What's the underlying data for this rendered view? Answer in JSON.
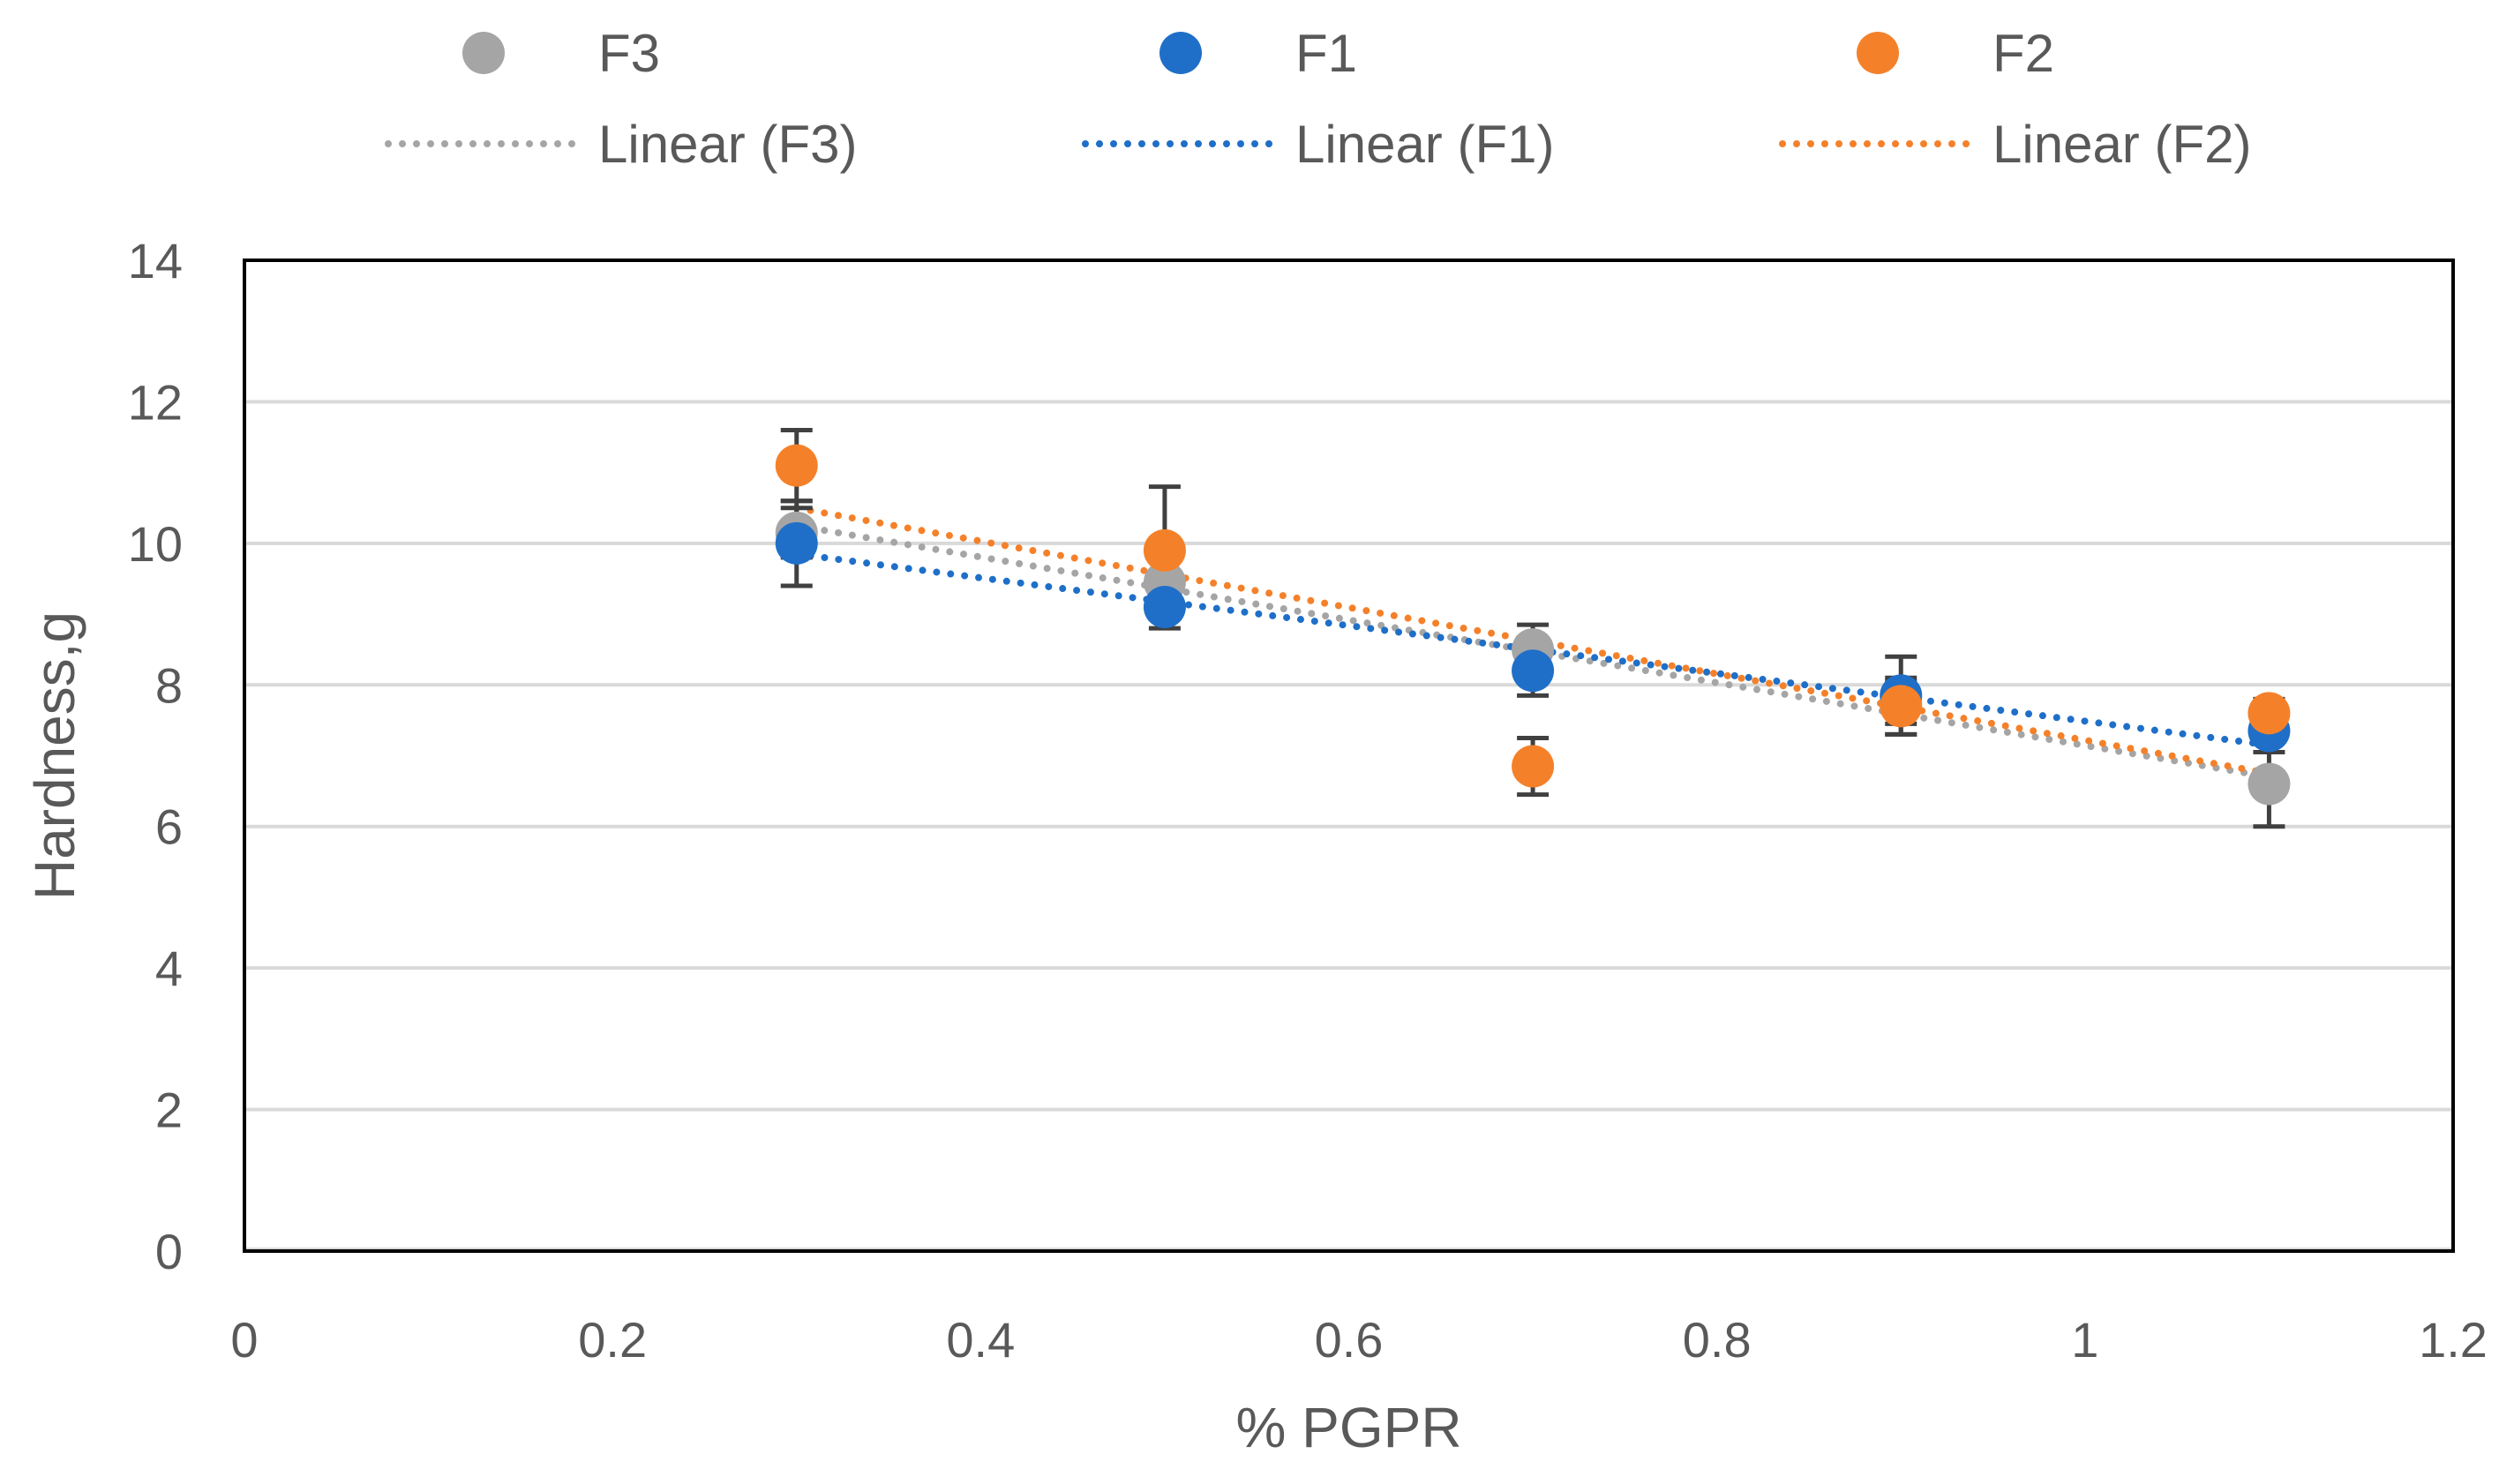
{
  "chart_data": {
    "type": "scatter",
    "title": "",
    "xlabel": "% PGPR",
    "ylabel": "Hardness,g",
    "xlim": [
      0,
      1.2
    ],
    "ylim": [
      0,
      14
    ],
    "x_ticks": [
      0,
      0.2,
      0.4,
      0.6,
      0.8,
      1,
      1.2
    ],
    "x_tick_labels": [
      "0",
      "0.2",
      "0.4",
      "0.6",
      "0.8",
      "1",
      "1.2"
    ],
    "y_ticks": [
      0,
      2,
      4,
      6,
      8,
      10,
      12,
      14
    ],
    "y_tick_labels": [
      "0",
      "2",
      "4",
      "6",
      "8",
      "10",
      "12",
      "14"
    ],
    "grid": "horizontal",
    "legend_position": "top",
    "series": [
      {
        "name": "F3",
        "trend_name": "Linear (F3)",
        "color": "#A5A5A5",
        "x": [
          0.3,
          0.5,
          0.7,
          0.9,
          1.1
        ],
        "y": [
          10.15,
          9.45,
          8.5,
          7.75,
          6.6
        ],
        "error": [
          0.35,
          0.35,
          0.35,
          0.3,
          0.6
        ],
        "trend": {
          "x": [
            0.3,
            1.1
          ],
          "y": [
            10.25,
            6.7
          ]
        }
      },
      {
        "name": "F1",
        "trend_name": "Linear (F1)",
        "color": "#1F6FC8",
        "x": [
          0.3,
          0.5,
          0.7,
          0.9,
          1.1
        ],
        "y": [
          10.0,
          9.1,
          8.2,
          7.85,
          7.35
        ],
        "error": [
          0.6,
          0.3,
          0.35,
          0.55,
          0.3
        ],
        "trend": {
          "x": [
            0.3,
            1.1
          ],
          "y": [
            9.85,
            7.15
          ]
        }
      },
      {
        "name": "F2",
        "trend_name": "Linear (F2)",
        "color": "#F4812A",
        "x": [
          0.3,
          0.5,
          0.7,
          0.9,
          1.1
        ],
        "y": [
          11.1,
          9.9,
          6.85,
          7.7,
          7.6
        ],
        "error": [
          0.5,
          0.9,
          0.4,
          0.4,
          0.2
        ],
        "trend": {
          "x": [
            0.3,
            1.1
          ],
          "y": [
            10.5,
            6.75
          ]
        }
      }
    ],
    "error_bar_color": "#404040"
  }
}
